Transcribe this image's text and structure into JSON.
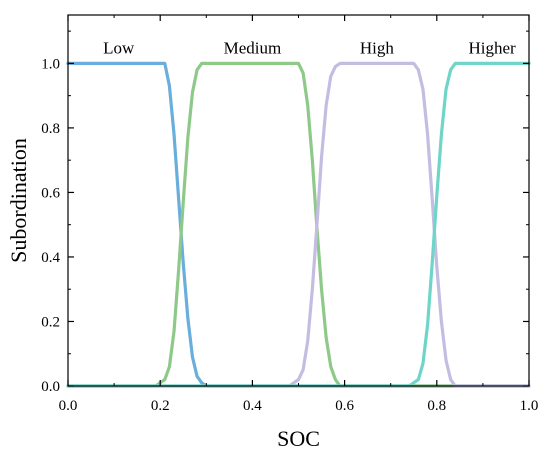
{
  "chart_data": {
    "type": "line",
    "title": "",
    "xlabel": "SOC",
    "ylabel": "Subordination",
    "xlim": [
      0.0,
      1.0
    ],
    "ylim": [
      0.0,
      1.15
    ],
    "xticks": [
      "0.0",
      "0.2",
      "0.4",
      "0.6",
      "0.8",
      "1.0"
    ],
    "yticks": [
      "0.0",
      "0.2",
      "0.4",
      "0.6",
      "0.8",
      "1.0"
    ],
    "grid": false,
    "legend": "none",
    "series": [
      {
        "name": "Low",
        "color": "#6aaedc",
        "x": [
          0.0,
          0.21,
          0.22,
          0.23,
          0.24,
          0.25,
          0.26,
          0.27,
          0.28,
          0.29,
          0.3,
          0.32,
          1.0
        ],
        "y": [
          1.0,
          1.0,
          0.93,
          0.78,
          0.58,
          0.38,
          0.21,
          0.09,
          0.03,
          0.01,
          0.0,
          0.0,
          0.0
        ]
      },
      {
        "name": "Medium",
        "color": "#8fc98a",
        "x": [
          0.0,
          0.19,
          0.21,
          0.22,
          0.23,
          0.24,
          0.25,
          0.26,
          0.27,
          0.28,
          0.29,
          0.5,
          0.51,
          0.52,
          0.53,
          0.54,
          0.55,
          0.56,
          0.57,
          0.58,
          0.59,
          0.61,
          1.0
        ],
        "y": [
          0.0,
          0.0,
          0.02,
          0.06,
          0.17,
          0.36,
          0.57,
          0.77,
          0.91,
          0.98,
          1.0,
          1.0,
          0.97,
          0.87,
          0.7,
          0.49,
          0.3,
          0.15,
          0.06,
          0.02,
          0.0,
          0.0,
          0.0
        ]
      },
      {
        "name": "High",
        "color": "#c4bde2",
        "x": [
          0.0,
          0.48,
          0.5,
          0.51,
          0.52,
          0.53,
          0.54,
          0.55,
          0.56,
          0.57,
          0.58,
          0.59,
          0.75,
          0.76,
          0.77,
          0.78,
          0.79,
          0.8,
          0.81,
          0.82,
          0.83,
          0.84,
          0.86,
          1.0
        ],
        "y": [
          0.0,
          0.0,
          0.02,
          0.05,
          0.14,
          0.3,
          0.5,
          0.71,
          0.87,
          0.96,
          0.99,
          1.0,
          1.0,
          0.98,
          0.92,
          0.78,
          0.58,
          0.37,
          0.2,
          0.08,
          0.02,
          0.0,
          0.0,
          0.0
        ]
      },
      {
        "name": "Higher",
        "color": "#6fd5c8",
        "x": [
          0.0,
          0.74,
          0.76,
          0.77,
          0.78,
          0.79,
          0.8,
          0.81,
          0.82,
          0.83,
          0.84,
          1.0
        ],
        "y": [
          0.0,
          0.0,
          0.02,
          0.07,
          0.19,
          0.38,
          0.59,
          0.78,
          0.92,
          0.98,
          1.0,
          1.0
        ]
      }
    ],
    "annotations": [
      {
        "text": "Low",
        "series": 0,
        "x": 0.11,
        "y": 1.05
      },
      {
        "text": "Medium",
        "series": 1,
        "x": 0.4,
        "y": 1.05
      },
      {
        "text": "High",
        "series": 2,
        "x": 0.67,
        "y": 1.05
      },
      {
        "text": "Higher",
        "series": 3,
        "x": 0.92,
        "y": 1.05
      }
    ]
  }
}
